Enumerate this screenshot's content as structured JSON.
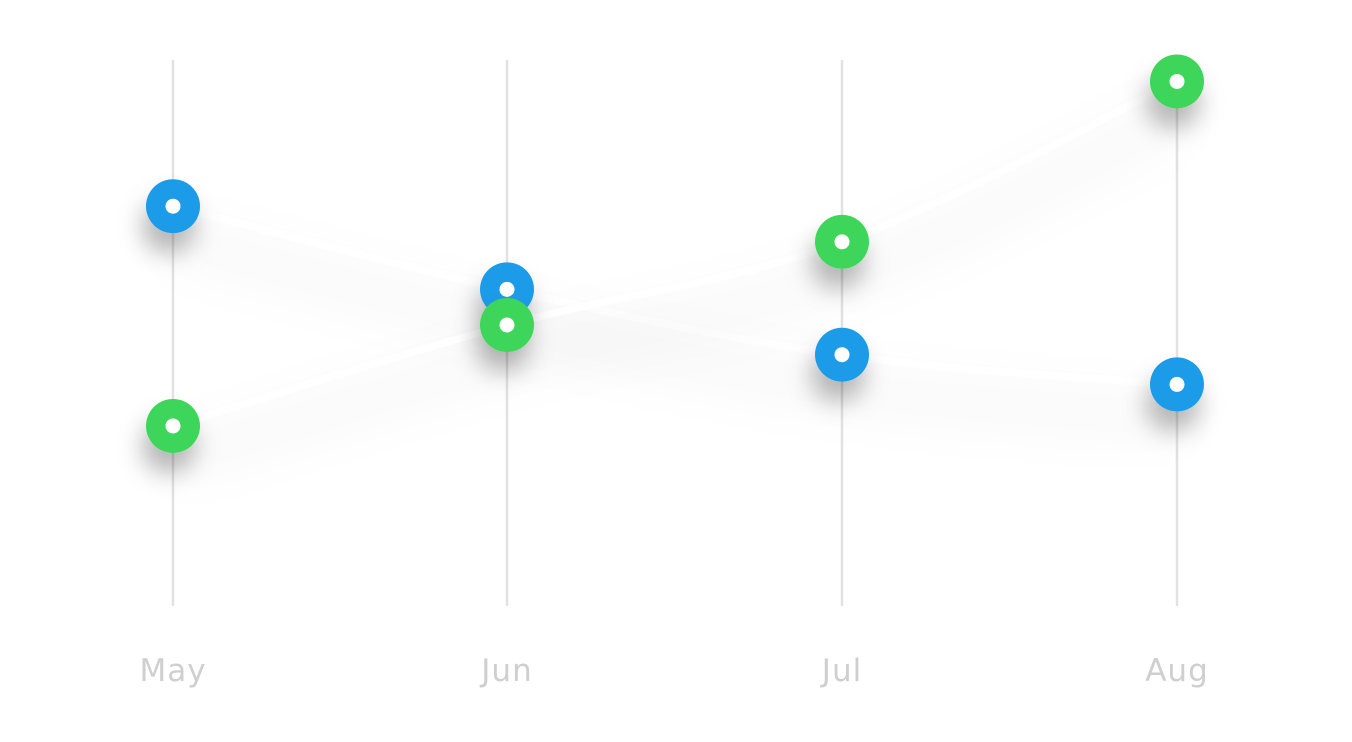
{
  "chart_data": {
    "type": "line",
    "categories": [
      "May",
      "Jun",
      "Jul",
      "Aug"
    ],
    "grid": true,
    "legend": "none",
    "ylim": [
      0,
      100
    ],
    "series": [
      {
        "color": "#1d9be8",
        "values": [
          70,
          56,
          45,
          40
        ]
      },
      {
        "color": "#3ed65a",
        "values": [
          33,
          50,
          64,
          91
        ]
      }
    ]
  }
}
